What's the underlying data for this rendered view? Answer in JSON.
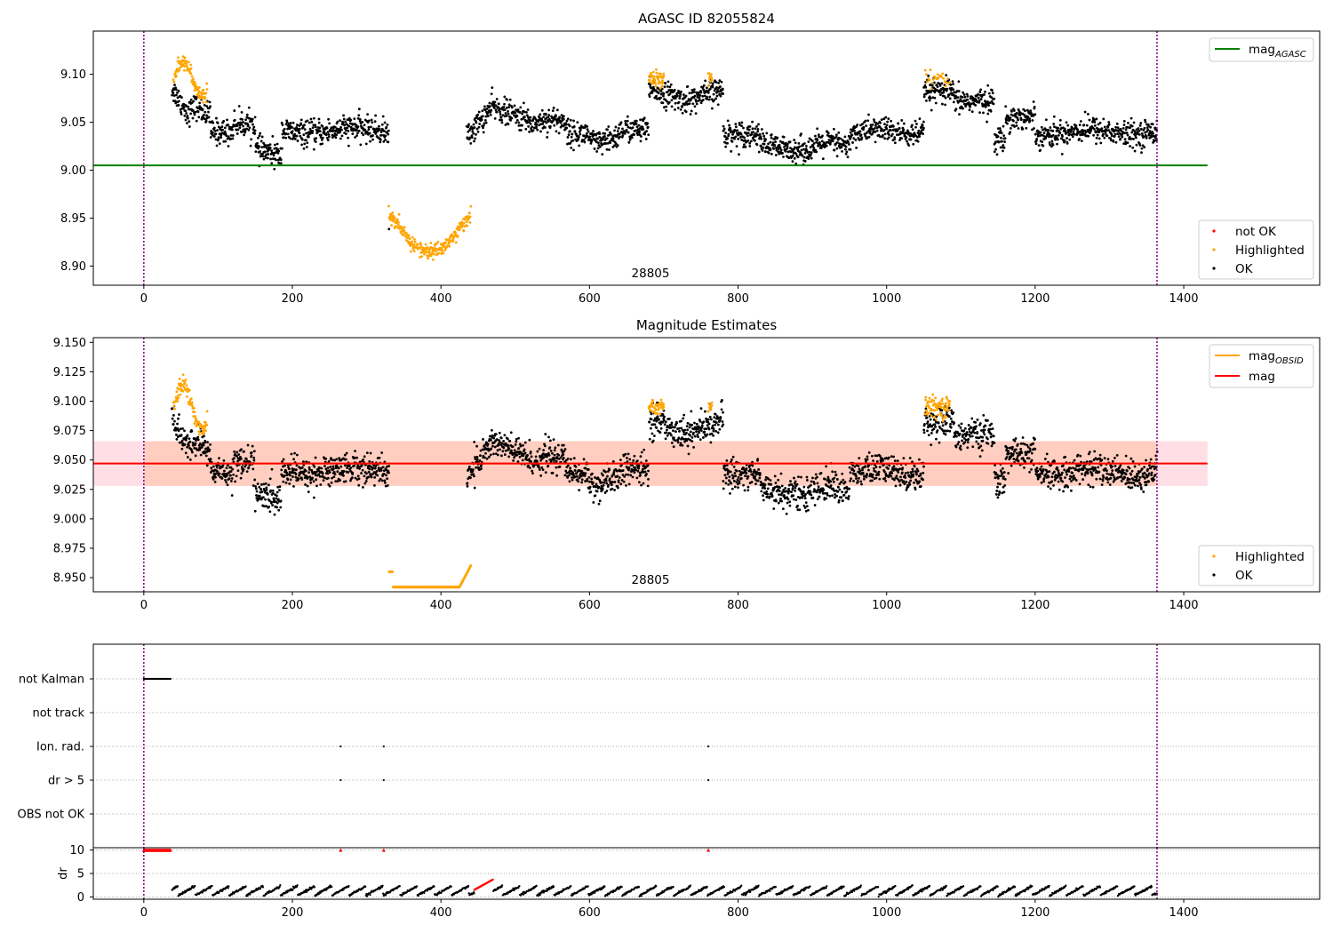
{
  "colors": {
    "ok": "#000000",
    "highlighted": "#ffa500",
    "not_ok": "#ff0000",
    "mag_agasc_line": "#008000",
    "mag_obsid_line": "#ffa500",
    "mag_line": "#ff0000",
    "boundary_line": "#800080",
    "mag_band_fill": "#ffc0cb"
  },
  "chart_data": [
    {
      "type": "scatter",
      "title": "AGASC ID 82055824",
      "xlim": [
        -68,
        1583
      ],
      "ylim": [
        8.88,
        9.145
      ],
      "xticks": [
        0,
        200,
        400,
        600,
        800,
        1000,
        1200,
        1400
      ],
      "yticks": [
        "8.90",
        "8.95",
        "9.00",
        "9.05",
        "9.10"
      ],
      "ytick_values": [
        8.9,
        8.95,
        9.0,
        9.05,
        9.1
      ],
      "obsid_boundaries": [
        0,
        1364
      ],
      "obsid_label": "28805",
      "obsid_label_x": 682,
      "mag_agasc": {
        "value": 9.005,
        "x_range": [
          -68,
          1432
        ]
      },
      "legend_top": [
        "mag_AGASC"
      ],
      "legend_bottom": [
        "not OK",
        "Highlighted",
        "OK"
      ],
      "series": [
        {
          "name": "OK",
          "segments": [
            [
              38,
              330,
              "lc1"
            ],
            [
              435,
              780,
              "lc2"
            ],
            [
              780,
              1050,
              "lc3"
            ],
            [
              1050,
              1150,
              "lc4"
            ],
            [
              1150,
              1364,
              "lc5"
            ]
          ]
        },
        {
          "name": "Highlighted",
          "segments": [
            [
              40,
              85,
              "hl_early"
            ],
            [
              330,
              440,
              "hl_dip"
            ],
            [
              680,
              700,
              "hl_top"
            ],
            [
              760,
              765,
              "hl_top2"
            ],
            [
              1052,
              1085,
              "hl_top3"
            ]
          ]
        }
      ]
    },
    {
      "type": "scatter",
      "title": "Magnitude Estimates",
      "xlim": [
        -68,
        1583
      ],
      "ylim": [
        8.938,
        9.154
      ],
      "xticks": [
        0,
        200,
        400,
        600,
        800,
        1000,
        1200,
        1400
      ],
      "yticks": [
        "8.950",
        "8.975",
        "9.000",
        "9.025",
        "9.050",
        "9.075",
        "9.100",
        "9.125",
        "9.150"
      ],
      "ytick_values": [
        8.95,
        8.975,
        9.0,
        9.025,
        9.05,
        9.075,
        9.1,
        9.125,
        9.15
      ],
      "obsid_boundaries": [
        0,
        1364
      ],
      "obsid_label": "28805",
      "obsid_label_x": 682,
      "mag": 9.047,
      "mag_obsid": 9.047,
      "mag_band": [
        9.028,
        9.066
      ],
      "mag_band_obsid_x": [
        -68,
        1432
      ],
      "legend_top": [
        "mag_OBSID",
        "mag"
      ],
      "legend_bottom": [
        "Highlighted",
        "OK"
      ],
      "series": [
        {
          "name": "OK",
          "segments": [
            [
              38,
              330,
              "lc1"
            ],
            [
              435,
              780,
              "lc2"
            ],
            [
              780,
              1050,
              "lc3"
            ],
            [
              1050,
              1150,
              "lc4"
            ],
            [
              1150,
              1364,
              "lc5"
            ]
          ]
        },
        {
          "name": "Highlighted",
          "segments": [
            [
              40,
              85,
              "hl_early"
            ],
            [
              330,
              440,
              "hl_clip"
            ],
            [
              680,
              700,
              "hl_top"
            ],
            [
              760,
              765,
              "hl_top2"
            ],
            [
              1052,
              1085,
              "hl_top3"
            ]
          ]
        }
      ]
    },
    {
      "type": "scatter",
      "title": "",
      "xlim": [
        -68,
        1583
      ],
      "flag_rows": [
        "not Kalman",
        "not track",
        "Ion. rad.",
        "dr > 5",
        "OBS not OK"
      ],
      "flags": {
        "not Kalman": [
          [
            0,
            36
          ]
        ],
        "not track": [],
        "Ion. rad.": [
          [
            265
          ],
          [
            323
          ],
          [
            760
          ]
        ],
        "dr > 5": [
          [
            265
          ],
          [
            323
          ],
          [
            760
          ]
        ],
        "OBS not OK": []
      },
      "obsid_boundaries": [
        0,
        1364
      ]
    },
    {
      "type": "scatter",
      "xlabel": "",
      "ylabel": "dr",
      "xlim": [
        -68,
        1583
      ],
      "ylim": [
        -0.5,
        10.5
      ],
      "xticks": [
        0,
        200,
        400,
        600,
        800,
        1000,
        1200,
        1400
      ],
      "yticks": [
        "0",
        "5",
        "10"
      ],
      "ytick_values": [
        0,
        5,
        10
      ],
      "clipped_red_at_10": [
        [
          0,
          36
        ],
        [
          265
        ],
        [
          323
        ],
        [
          760
        ]
      ],
      "red_rise": [
        445,
        470
      ],
      "obsid_boundaries": [
        0,
        1364
      ]
    }
  ]
}
